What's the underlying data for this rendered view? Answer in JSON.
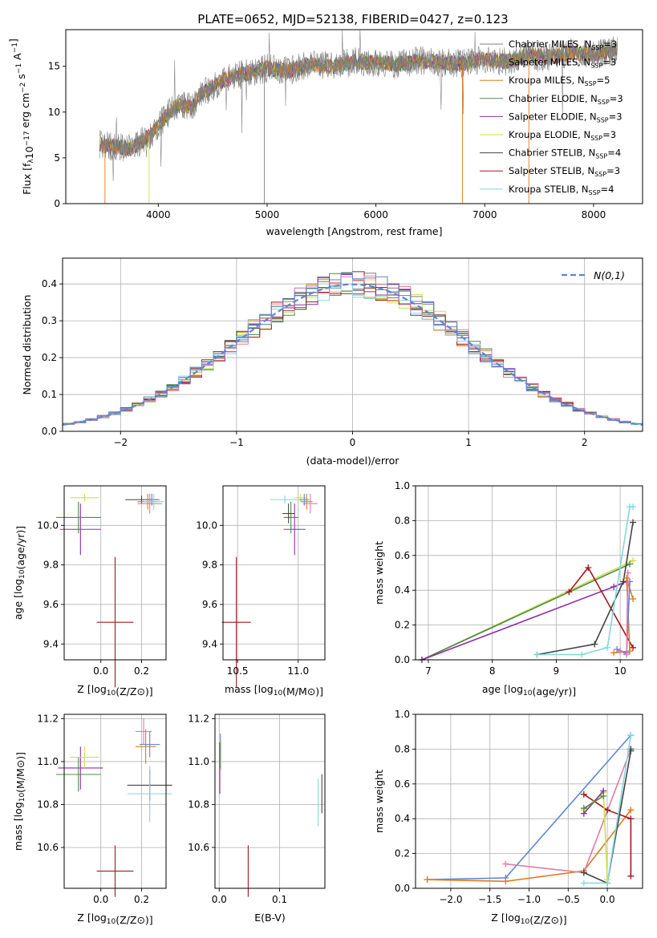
{
  "figure": {
    "title": "PLATE=0652, MJD=52138, FIBERID=0427, z=0.123"
  },
  "colors": {
    "Chabrier MILES": "#7f7f7f",
    "Salpeter MILES": "#7f7f7f",
    "Kroupa MILES": "#e07b1c",
    "Chabrier ELODIE": "#4f8a4f",
    "Salpeter ELODIE": "#8e2ea8",
    "Kroupa ELODIE": "#cde04a",
    "Chabrier STELIB": "#444444",
    "Salpeter STELIB": "#a3191c",
    "Kroupa STELIB": "#80d8e0",
    "pink": "#e07aa8",
    "blue": "#5b86d6"
  },
  "chart_data": [
    {
      "id": "spectrum",
      "type": "line",
      "xlabel": "wavelength [Angstrom, rest frame]",
      "ylabel": "Flux [f_λ10^-17 erg cm^-2 s^-1 A^-1]",
      "xlim": [
        3150,
        8450
      ],
      "ylim": [
        0,
        19
      ],
      "xticks": [
        4000,
        5000,
        6000,
        7000,
        8000
      ],
      "yticks": [
        0,
        5,
        10,
        15
      ],
      "legend_position": "top-right",
      "legend": [
        {
          "prefix": "Chabrier MILES, N",
          "sub": "SSP",
          "suffix": "=3",
          "color": "#7f7f7f"
        },
        {
          "prefix": "Salpeter MILES, N",
          "sub": "SSP",
          "suffix": "=3",
          "color": "#7f7f7f"
        },
        {
          "prefix": "Kroupa MILES, N",
          "sub": "SSP",
          "suffix": "=5",
          "color": "#e07b1c"
        },
        {
          "prefix": "Chabrier ELODIE, N",
          "sub": "SSP",
          "suffix": "=3",
          "color": "#4f8a4f"
        },
        {
          "prefix": "Salpeter ELODIE, N",
          "sub": "SSP",
          "suffix": "=3",
          "color": "#8e2ea8"
        },
        {
          "prefix": "Kroupa ELODIE, N",
          "sub": "SSP",
          "suffix": "=3",
          "color": "#cde04a"
        },
        {
          "prefix": "Chabrier STELIB, N",
          "sub": "SSP",
          "suffix": "=4",
          "color": "#444444"
        },
        {
          "prefix": "Salpeter STELIB, N",
          "sub": "SSP",
          "suffix": "=3",
          "color": "#a3191c"
        },
        {
          "prefix": "Kroupa STELIB, N",
          "sub": "SSP",
          "suffix": "=4",
          "color": "#80d8e0"
        }
      ],
      "spectrum_outline": {
        "x": [
          3450,
          3600,
          3750,
          3900,
          4000,
          4100,
          4200,
          4300,
          4400,
          4600,
          4800,
          5000,
          5200,
          5400,
          5600,
          5800,
          6000,
          6200,
          6400,
          6600,
          6800,
          7000,
          7200,
          7400,
          7600,
          7800,
          8000,
          8200
        ],
        "y": [
          6.5,
          6.2,
          6.0,
          7.2,
          8.5,
          10.0,
          10.8,
          10.5,
          12.0,
          13.5,
          14.2,
          14.8,
          14.5,
          15.2,
          15.0,
          15.5,
          15.4,
          15.2,
          15.6,
          15.4,
          15.3,
          15.8,
          15.5,
          16.2,
          16.0,
          16.5,
          16.3,
          16.8
        ]
      }
    },
    {
      "id": "residuals",
      "type": "step",
      "xlabel": "(data-model)/error",
      "ylabel": "Normed distribution",
      "xlim": [
        -2.5,
        2.5
      ],
      "ylim": [
        0,
        0.47
      ],
      "xticks": [
        -2,
        -1,
        0,
        1,
        2
      ],
      "yticks": [
        0.0,
        0.1,
        0.2,
        0.3,
        0.4
      ],
      "grid": true,
      "legend_position": "top-right",
      "reference_label": "N(0,1)",
      "reference_curve": "normal(0,1)"
    },
    {
      "id": "age-vs-z",
      "type": "errorbar",
      "xlabel": "Z [log10(Z/Z⊙)]",
      "ylabel": "age [log10(age/yr)]",
      "xlim": [
        -0.18,
        0.32
      ],
      "ylim": [
        9.32,
        10.2
      ],
      "xticks": [
        0.0,
        0.2
      ],
      "yticks": [
        9.4,
        9.6,
        9.8,
        10.0
      ],
      "grid": true,
      "points": [
        {
          "x": 0.07,
          "y": 9.51,
          "xerr": 0.09,
          "yerr": 0.33,
          "color": "#a3191c"
        },
        {
          "x": -0.1,
          "y": 9.98,
          "xerr": 0.1,
          "yerr": 0.13,
          "color": "#8e2ea8"
        },
        {
          "x": -0.11,
          "y": 10.04,
          "xerr": 0.11,
          "yerr": 0.08,
          "color": "#4f8a4f"
        },
        {
          "x": -0.08,
          "y": 10.14,
          "xerr": 0.07,
          "yerr": 0.02,
          "color": "#cde04a"
        },
        {
          "x": 0.2,
          "y": 10.13,
          "xerr": 0.08,
          "yerr": 0.02,
          "color": "#444444"
        },
        {
          "x": 0.23,
          "y": 10.12,
          "xerr": 0.05,
          "yerr": 0.04,
          "color": "#e07b1c"
        },
        {
          "x": 0.24,
          "y": 10.11,
          "xerr": 0.06,
          "yerr": 0.05,
          "color": "#e07aa8"
        },
        {
          "x": 0.25,
          "y": 10.13,
          "xerr": 0.04,
          "yerr": 0.03,
          "color": "#5b86d6"
        },
        {
          "x": 0.26,
          "y": 10.12,
          "xerr": 0.05,
          "yerr": 0.04,
          "color": "#80d8e0"
        }
      ]
    },
    {
      "id": "age-vs-mass",
      "type": "errorbar",
      "xlabel": "mass [log10(M/M⊙)]",
      "ylabel": "",
      "xlim": [
        10.38,
        11.22
      ],
      "ylim": [
        9.32,
        10.2
      ],
      "xticks": [
        10.5,
        11.0
      ],
      "yticks": [
        9.4,
        9.6,
        9.8,
        10.0
      ],
      "grid": true,
      "points": [
        {
          "x": 10.49,
          "y": 9.51,
          "xerr": 0.12,
          "yerr": 0.33,
          "color": "#a3191c"
        },
        {
          "x": 10.97,
          "y": 9.98,
          "xerr": 0.09,
          "yerr": 0.13,
          "color": "#8e2ea8"
        },
        {
          "x": 10.94,
          "y": 10.04,
          "xerr": 0.06,
          "yerr": 0.08,
          "color": "#4f8a4f"
        },
        {
          "x": 11.02,
          "y": 10.14,
          "xerr": 0.05,
          "yerr": 0.02,
          "color": "#cde04a"
        },
        {
          "x": 10.89,
          "y": 10.13,
          "xerr": 0.12,
          "yerr": 0.02,
          "color": "#80d8e0"
        },
        {
          "x": 10.92,
          "y": 10.06,
          "xerr": 0.05,
          "yerr": 0.05,
          "color": "#444444"
        },
        {
          "x": 11.07,
          "y": 10.12,
          "xerr": 0.05,
          "yerr": 0.04,
          "color": "#e07b1c"
        },
        {
          "x": 11.1,
          "y": 10.11,
          "xerr": 0.06,
          "yerr": 0.05,
          "color": "#e07aa8"
        },
        {
          "x": 11.05,
          "y": 10.13,
          "xerr": 0.04,
          "yerr": 0.03,
          "color": "#5b86d6"
        }
      ]
    },
    {
      "id": "weight-vs-age",
      "type": "line",
      "xlabel": "age [log10(age/yr)]",
      "ylabel": "mass weight",
      "xlim": [
        6.8,
        10.35
      ],
      "ylim": [
        0,
        1.0
      ],
      "xticks": [
        7,
        8,
        9,
        10
      ],
      "yticks": [
        0.0,
        0.2,
        0.4,
        0.6,
        0.8,
        1.0
      ],
      "grid": true,
      "series": [
        {
          "x": [
            6.9,
            10.2
          ],
          "y": [
            0.0,
            0.57
          ],
          "color": "#cde04a"
        },
        {
          "x": [
            6.9,
            10.15
          ],
          "y": [
            0.0,
            0.55
          ],
          "color": "#4f8a4f"
        },
        {
          "x": [
            6.9,
            9.9,
            10.1
          ],
          "y": [
            0.0,
            0.42,
            0.45
          ],
          "color": "#8e2ea8"
        },
        {
          "x": [
            9.2,
            9.5,
            10.2
          ],
          "y": [
            0.39,
            0.53,
            0.07
          ],
          "color": "#a3191c"
        },
        {
          "x": [
            8.7,
            9.6,
            10.05,
            10.2
          ],
          "y": [
            0.03,
            0.09,
            0.45,
            0.79
          ],
          "color": "#444444"
        },
        {
          "x": [
            8.7,
            9.4,
            9.8,
            10.15,
            10.2
          ],
          "y": [
            0.03,
            0.03,
            0.07,
            0.88,
            0.88
          ],
          "color": "#80d8e0"
        },
        {
          "x": [
            9.9,
            10.15,
            10.1,
            10.2
          ],
          "y": [
            0.04,
            0.05,
            0.47,
            0.35
          ],
          "color": "#e07b1c"
        },
        {
          "x": [
            9.95,
            10.1,
            10.15
          ],
          "y": [
            0.06,
            0.04,
            0.45
          ],
          "color": "#5b86d6"
        },
        {
          "x": [
            10.0,
            10.1,
            10.12
          ],
          "y": [
            0.05,
            0.03,
            0.5
          ],
          "color": "#e07aa8"
        }
      ]
    },
    {
      "id": "mass-vs-z",
      "type": "errorbar",
      "xlabel": "Z [log10(Z/Z⊙)]",
      "ylabel": "mass [log10(M/M⊙)]",
      "xlim": [
        -0.18,
        0.32
      ],
      "ylim": [
        10.41,
        11.22
      ],
      "xticks": [
        0.0,
        0.2
      ],
      "yticks": [
        10.6,
        10.8,
        11.0,
        11.2
      ],
      "grid": true,
      "points": [
        {
          "x": 0.07,
          "y": 10.49,
          "xerr": 0.09,
          "yerr": 0.12,
          "color": "#a3191c"
        },
        {
          "x": -0.1,
          "y": 10.97,
          "xerr": 0.11,
          "yerr": 0.1,
          "color": "#8e2ea8"
        },
        {
          "x": -0.11,
          "y": 10.94,
          "xerr": 0.11,
          "yerr": 0.08,
          "color": "#4f8a4f"
        },
        {
          "x": -0.08,
          "y": 11.02,
          "xerr": 0.07,
          "yerr": 0.05,
          "color": "#cde04a"
        },
        {
          "x": 0.24,
          "y": 10.89,
          "xerr": 0.11,
          "yerr": 0.07,
          "color": "#444444"
        },
        {
          "x": 0.24,
          "y": 10.85,
          "xerr": 0.11,
          "yerr": 0.13,
          "color": "#80d8e0"
        },
        {
          "x": 0.22,
          "y": 11.07,
          "xerr": 0.05,
          "yerr": 0.08,
          "color": "#e07b1c"
        },
        {
          "x": 0.21,
          "y": 11.14,
          "xerr": 0.04,
          "yerr": 0.06,
          "color": "#e07aa8"
        },
        {
          "x": 0.24,
          "y": 11.08,
          "xerr": 0.05,
          "yerr": 0.06,
          "color": "#5b86d6"
        }
      ]
    },
    {
      "id": "mass-vs-ebv",
      "type": "errorbar",
      "xlabel": "E(B-V)",
      "ylabel": "",
      "xlim": [
        -0.007,
        0.175
      ],
      "ylim": [
        10.41,
        11.22
      ],
      "xticks": [
        0.0,
        0.1
      ],
      "yticks": [
        10.6,
        10.8,
        11.0,
        11.2
      ],
      "grid": true,
      "points": [
        {
          "x": 0.048,
          "y": 10.49,
          "xerr": 0.0,
          "yerr": 0.12,
          "color": "#a3191c"
        },
        {
          "x": 0.001,
          "y": 10.97,
          "xerr": 0.0,
          "yerr": 0.12,
          "color": "#8e2ea8"
        },
        {
          "x": 0.002,
          "y": 11.05,
          "xerr": 0.0,
          "yerr": 0.08,
          "color": "#5b86d6"
        },
        {
          "x": 0.003,
          "y": 11.03,
          "xerr": 0.0,
          "yerr": 0.07,
          "color": "#cde04a"
        },
        {
          "x": 0.164,
          "y": 10.81,
          "xerr": 0.0,
          "yerr": 0.11,
          "color": "#80d8e0"
        },
        {
          "x": 0.17,
          "y": 10.85,
          "xerr": 0.0,
          "yerr": 0.09,
          "color": "#444444"
        }
      ]
    },
    {
      "id": "weight-vs-z",
      "type": "line",
      "xlabel": "Z [log10(Z/Z⊙)]",
      "ylabel": "mass weight",
      "xlim": [
        -2.45,
        0.45
      ],
      "ylim": [
        0,
        1.0
      ],
      "xticks": [
        -2.0,
        -1.5,
        -1.0,
        -0.5,
        0.0
      ],
      "yticks": [
        0.0,
        0.2,
        0.4,
        0.6,
        0.8,
        1.0
      ],
      "grid": true,
      "series": [
        {
          "x": [
            -2.3,
            -1.3,
            0.3
          ],
          "y": [
            0.05,
            0.06,
            0.88
          ],
          "color": "#5b86d6"
        },
        {
          "x": [
            -2.3,
            -1.3,
            -0.3,
            0.3,
            0.3
          ],
          "y": [
            0.05,
            0.04,
            0.1,
            0.45,
            0.45
          ],
          "color": "#e07b1c"
        },
        {
          "x": [
            -1.3,
            -0.3,
            0.3
          ],
          "y": [
            0.14,
            0.09,
            0.8
          ],
          "color": "#e07aa8"
        },
        {
          "x": [
            -0.3,
            0.0,
            0.3,
            0.3
          ],
          "y": [
            0.54,
            0.45,
            0.4,
            0.07
          ],
          "color": "#a3191c"
        },
        {
          "x": [
            -0.3,
            0.0,
            0.3,
            0.3
          ],
          "y": [
            0.09,
            0.03,
            0.79,
            0.8
          ],
          "color": "#444444"
        },
        {
          "x": [
            -0.3,
            0.0,
            0.3
          ],
          "y": [
            0.03,
            0.03,
            0.88
          ],
          "color": "#80d8e0"
        },
        {
          "x": [
            -0.3,
            -0.05,
            0.0
          ],
          "y": [
            0.45,
            0.55,
            0.05
          ],
          "color": "#cde04a"
        },
        {
          "x": [
            -0.3,
            -0.05
          ],
          "y": [
            0.43,
            0.56
          ],
          "color": "#8e2ea8"
        },
        {
          "x": [
            -0.3,
            -0.05
          ],
          "y": [
            0.46,
            0.53
          ],
          "color": "#4f8a4f"
        }
      ]
    }
  ]
}
